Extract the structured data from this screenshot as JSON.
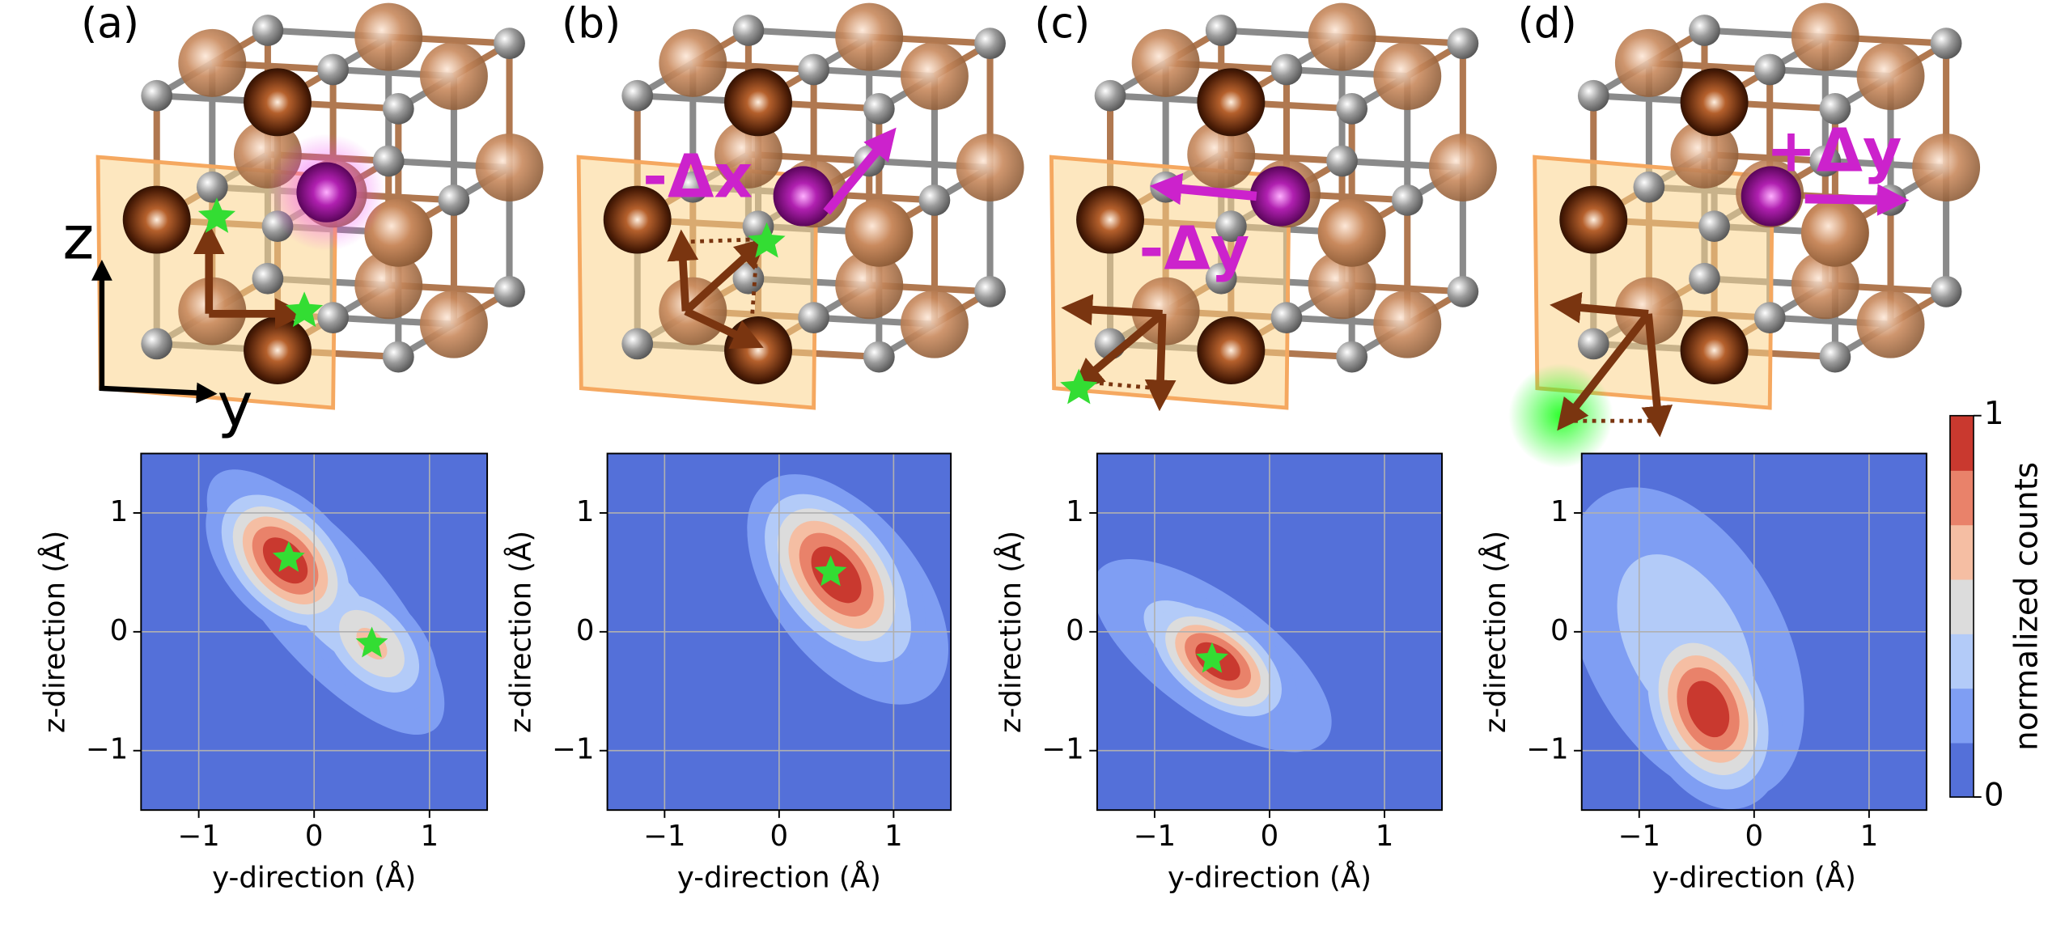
{
  "panels": [
    {
      "label": "(a)",
      "axis_z": "z",
      "axis_y": "y"
    },
    {
      "label": "(b)",
      "annotation": "-Δx"
    },
    {
      "label": "(c)",
      "annotation": "-Δy"
    },
    {
      "label": "(d)",
      "annotation": "+Δy"
    }
  ],
  "chart_data": [
    {
      "type": "contour",
      "xlabel": "y-direction (Å)",
      "ylabel": "z-direction (Å)",
      "xlim": [
        -1.5,
        1.5
      ],
      "ylim": [
        -1.5,
        1.5
      ],
      "xticks": [
        {
          "value": -1,
          "label": "−1"
        },
        0,
        1
      ],
      "yticks": [
        {
          "value": -1,
          "label": "−1"
        },
        0,
        1
      ],
      "grid": true,
      "blobs": [
        {
          "x": 0.1,
          "y": 0.25,
          "major": 1.05,
          "minor": 0.38,
          "angle": -48,
          "amp": 0.36
        },
        {
          "x": -0.25,
          "y": 0.6,
          "major": 0.42,
          "minor": 0.26,
          "angle": -45,
          "amp": 1
        },
        {
          "x": 0.5,
          "y": -0.1,
          "major": 0.4,
          "minor": 0.24,
          "angle": -45,
          "amp": 0.62
        }
      ],
      "markers": [
        {
          "x": -0.22,
          "y": 0.62
        },
        {
          "x": 0.5,
          "y": -0.1
        }
      ],
      "marker_color": "#33dd33"
    },
    {
      "type": "contour",
      "xlabel": "y-direction (Å)",
      "ylabel": "z-direction (Å)",
      "xlim": [
        -1.5,
        1.5
      ],
      "ylim": [
        -1.5,
        1.5
      ],
      "xticks": [
        {
          "value": -1,
          "label": "−1"
        },
        0,
        1
      ],
      "yticks": [
        {
          "value": -1,
          "label": "−1"
        },
        0,
        1
      ],
      "grid": true,
      "blobs": [
        {
          "x": 0.6,
          "y": 0.35,
          "major": 0.75,
          "minor": 0.42,
          "angle": -50,
          "amp": 0.45
        },
        {
          "x": 0.5,
          "y": 0.48,
          "major": 0.5,
          "minor": 0.3,
          "angle": -50,
          "amp": 1
        }
      ],
      "markers": [
        {
          "x": 0.45,
          "y": 0.5
        }
      ],
      "marker_color": "#33dd33"
    },
    {
      "type": "contour",
      "xlabel": "y-direction (Å)",
      "ylabel": "z-direction (Å)",
      "xlim": [
        -1.5,
        1.5
      ],
      "ylim": [
        -1.5,
        1.5
      ],
      "xticks": [
        {
          "value": -1,
          "label": "−1"
        },
        0,
        1
      ],
      "yticks": [
        {
          "value": -1,
          "label": "−1"
        },
        0,
        1
      ],
      "grid": true,
      "blobs": [
        {
          "x": -0.5,
          "y": -0.2,
          "major": 0.85,
          "minor": 0.35,
          "angle": -35,
          "amp": 0.4
        },
        {
          "x": -0.45,
          "y": -0.25,
          "major": 0.4,
          "minor": 0.22,
          "angle": -35,
          "amp": 1
        }
      ],
      "markers": [
        {
          "x": -0.5,
          "y": -0.23
        }
      ],
      "marker_color": "#33dd33"
    },
    {
      "type": "contour",
      "xlabel": "y-direction (Å)",
      "ylabel": "z-direction (Å)",
      "xlim": [
        -1.5,
        1.5
      ],
      "ylim": [
        -1.5,
        1.5
      ],
      "xticks": [
        {
          "value": -1,
          "label": "−1"
        },
        0,
        1
      ],
      "yticks": [
        {
          "value": -1,
          "label": "−1"
        },
        0,
        1
      ],
      "grid": true,
      "blobs": [
        {
          "x": -0.6,
          "y": -0.1,
          "major": 1.0,
          "minor": 0.6,
          "angle": -60,
          "amp": 0.4
        },
        {
          "x": -0.4,
          "y": -0.65,
          "major": 0.45,
          "minor": 0.3,
          "angle": -65,
          "amp": 1
        }
      ],
      "markers": [],
      "marker_color": "#33dd33"
    }
  ],
  "colorbar": {
    "label": "normalized counts",
    "lim": [
      0,
      1
    ],
    "ticks": [
      0,
      1
    ],
    "colors": [
      "#5470d9",
      "#7f9ef3",
      "#b3cbf8",
      "#dcdcdc",
      "#f5bea3",
      "#e9826a",
      "#c9392f"
    ]
  }
}
